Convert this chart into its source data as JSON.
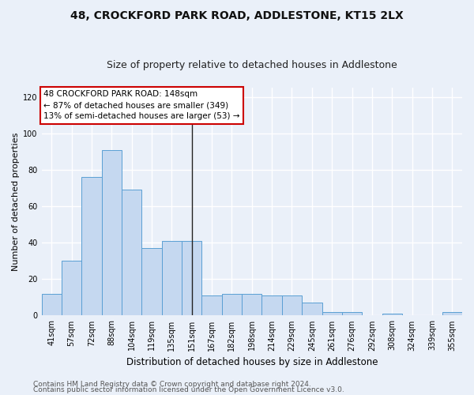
{
  "title": "48, CROCKFORD PARK ROAD, ADDLESTONE, KT15 2LX",
  "subtitle": "Size of property relative to detached houses in Addlestone",
  "xlabel": "Distribution of detached houses by size in Addlestone",
  "ylabel": "Number of detached properties",
  "categories": [
    "41sqm",
    "57sqm",
    "72sqm",
    "88sqm",
    "104sqm",
    "119sqm",
    "135sqm",
    "151sqm",
    "167sqm",
    "182sqm",
    "198sqm",
    "214sqm",
    "229sqm",
    "245sqm",
    "261sqm",
    "276sqm",
    "292sqm",
    "308sqm",
    "324sqm",
    "339sqm",
    "355sqm"
  ],
  "values": [
    12,
    30,
    76,
    91,
    69,
    37,
    41,
    41,
    11,
    12,
    12,
    11,
    11,
    7,
    2,
    2,
    0,
    1,
    0,
    0,
    2
  ],
  "bar_color": "#c5d8f0",
  "bar_edge_color": "#5a9fd4",
  "annotation_text": "48 CROCKFORD PARK ROAD: 148sqm\n← 87% of detached houses are smaller (349)\n13% of semi-detached houses are larger (53) →",
  "annotation_box_color": "#ffffff",
  "annotation_box_edge": "#cc0000",
  "vline_pos": 7.0,
  "ylim": [
    0,
    125
  ],
  "yticks": [
    0,
    20,
    40,
    60,
    80,
    100,
    120
  ],
  "footer1": "Contains HM Land Registry data © Crown copyright and database right 2024.",
  "footer2": "Contains public sector information licensed under the Open Government Licence v3.0.",
  "bg_color": "#eaf0f9",
  "plot_bg_color": "#eaf0f9",
  "grid_color": "#ffffff",
  "title_fontsize": 10,
  "subtitle_fontsize": 9,
  "xlabel_fontsize": 8.5,
  "ylabel_fontsize": 8,
  "tick_fontsize": 7,
  "footer_fontsize": 6.5,
  "annot_fontsize": 7.5
}
